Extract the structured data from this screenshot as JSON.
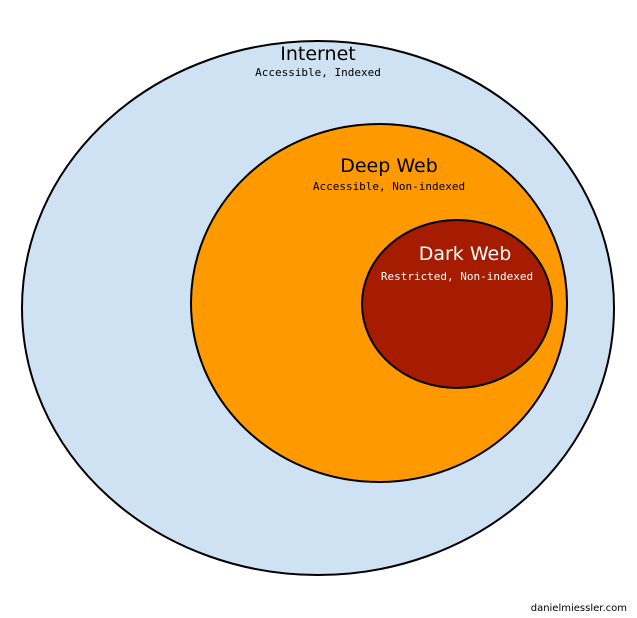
{
  "diagram": {
    "layers": [
      {
        "title": "Internet",
        "subtitle": "Accessible, Indexed",
        "fill": "#cfe2f3",
        "text_color": "#000000"
      },
      {
        "title": "Deep Web",
        "subtitle": "Accessible, Non-indexed",
        "fill": "#ff9900",
        "text_color": "#000000"
      },
      {
        "title": "Dark Web",
        "subtitle": "Restricted, Non-indexed",
        "fill": "#a61c00",
        "text_color": "#ffffff"
      }
    ],
    "outline_color": "#000000"
  },
  "footer": {
    "credit": "danielmiessler.com"
  }
}
